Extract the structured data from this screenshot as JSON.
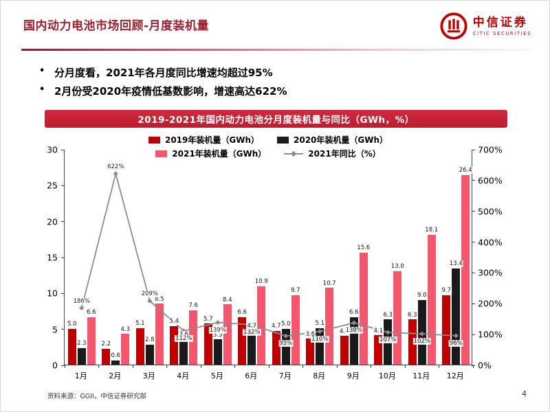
{
  "header": {
    "title": "国内动力电池市场回顾-月度装机量",
    "logo_cn": "中信证券",
    "logo_en": "CITIC SECURITIES"
  },
  "ui": {
    "bullet_marker": "•"
  },
  "bullets": [
    "分月度看，2021年各月度同比增速均超过95%",
    "2月份受2020年疫情低基数影响，增速高达622%"
  ],
  "footer": {
    "source": "资料来源：GGII，中信证券研究部",
    "page_number": "4"
  },
  "chart_data": {
    "type": "bar",
    "title": "2019-2021年国内动力电池分月度装机量与同比（GWh，%）",
    "categories": [
      "1月",
      "2月",
      "3月",
      "4月",
      "5月",
      "6月",
      "7月",
      "8月",
      "9月",
      "10月",
      "11月",
      "12月"
    ],
    "series": [
      {
        "key": "y2019",
        "name": "2019年装机量（GWh）",
        "type": "bar",
        "color": "#c00000",
        "values": [
          5.0,
          2.2,
          5.1,
          5.4,
          5.7,
          6.6,
          4.7,
          3.6,
          4.0,
          4.1,
          6.3,
          9.7
        ]
      },
      {
        "key": "y2020",
        "name": "2020年装机量（GWh）",
        "type": "bar",
        "color": "#1a1a1a",
        "values": [
          2.3,
          0.6,
          2.8,
          3.6,
          3.5,
          4.7,
          5.0,
          5.1,
          6.6,
          6.3,
          9.0,
          13.4
        ]
      },
      {
        "key": "y2021",
        "name": "2021年装机量（GWh）",
        "type": "bar",
        "color": "#f4566e",
        "values": [
          6.6,
          4.3,
          8.5,
          7.6,
          8.4,
          10.9,
          9.7,
          10.7,
          15.6,
          13.0,
          18.1,
          26.4
        ]
      },
      {
        "key": "yoy2021",
        "name": "2021年同比（%）",
        "type": "line",
        "color": "#8c8c8c",
        "values": [
          186,
          622,
          209,
          112,
          139,
          132,
          95,
          110,
          138,
          107,
          102,
          96
        ]
      }
    ],
    "left_axis": {
      "min": 0,
      "max": 30,
      "ticks": [
        0,
        5,
        10,
        15,
        20,
        25,
        30
      ],
      "label_format": "number"
    },
    "right_axis": {
      "min": 0,
      "max": 700,
      "ticks": [
        0,
        100,
        200,
        300,
        400,
        500,
        600,
        700
      ],
      "label_format": "percent"
    },
    "legend_position": "top",
    "grid": false
  }
}
